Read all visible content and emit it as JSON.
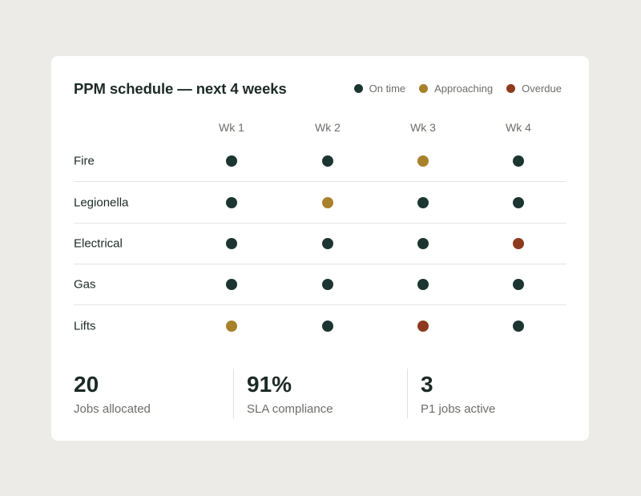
{
  "title": "PPM schedule — next 4 weeks",
  "colors": {
    "on_time": "#1c3530",
    "approaching": "#a8812a",
    "overdue": "#8e3a1f"
  },
  "legend": [
    {
      "status": "on_time",
      "label": "On time"
    },
    {
      "status": "approaching",
      "label": "Approaching"
    },
    {
      "status": "overdue",
      "label": "Overdue"
    }
  ],
  "weeks": [
    "Wk 1",
    "Wk 2",
    "Wk 3",
    "Wk 4"
  ],
  "rows": [
    {
      "label": "Fire",
      "status": [
        "on_time",
        "on_time",
        "approaching",
        "on_time"
      ]
    },
    {
      "label": "Legionella",
      "status": [
        "on_time",
        "approaching",
        "on_time",
        "on_time"
      ]
    },
    {
      "label": "Electrical",
      "status": [
        "on_time",
        "on_time",
        "on_time",
        "overdue"
      ]
    },
    {
      "label": "Gas",
      "status": [
        "on_time",
        "on_time",
        "on_time",
        "on_time"
      ]
    },
    {
      "label": "Lifts",
      "status": [
        "approaching",
        "on_time",
        "overdue",
        "on_time"
      ]
    }
  ],
  "stats": [
    {
      "value": "20",
      "label": "Jobs allocated"
    },
    {
      "value": "91%",
      "label": "SLA compliance"
    },
    {
      "value": "3",
      "label": "P1 jobs active"
    }
  ]
}
